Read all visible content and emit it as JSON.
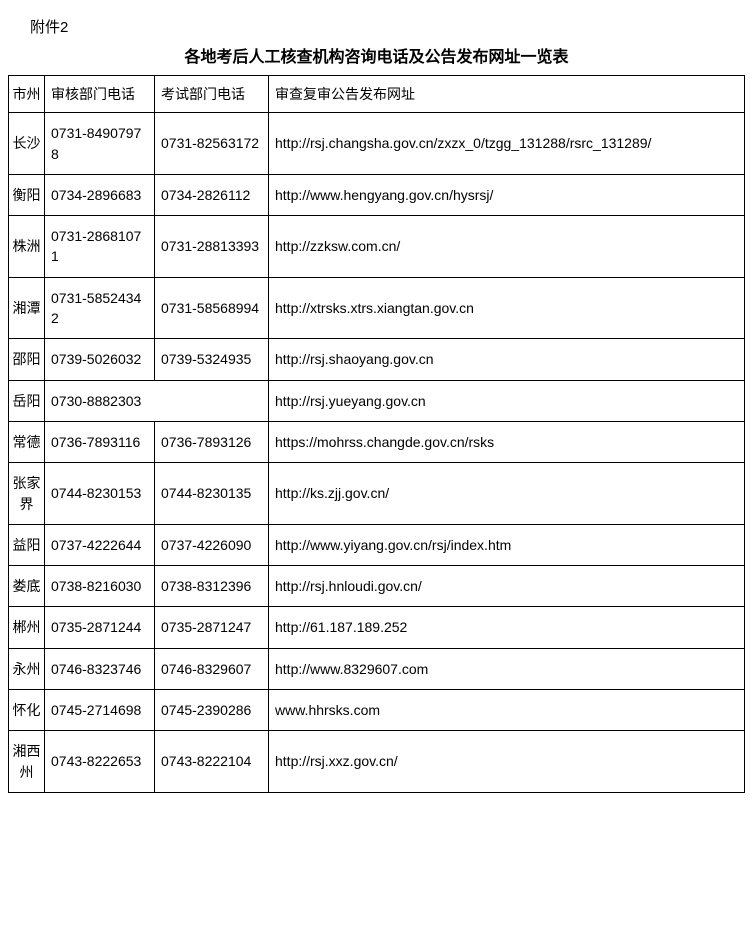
{
  "attachment_label": "附件2",
  "title": "各地考后人工核查机构咨询电话及公告发布网址一览表",
  "columns": {
    "city": "市州",
    "review_phone": "审核部门电话",
    "exam_phone": "考试部门电话",
    "url": "审查复审公告发布网址"
  },
  "rows": [
    {
      "city": "长沙",
      "review_phone": "0731-84907978",
      "exam_phone": "0731-82563172",
      "url": "http://rsj.changsha.gov.cn/zxzx_0/tzgg_131288/rsrc_131289/",
      "merged": false
    },
    {
      "city": "衡阳",
      "review_phone": "0734-2896683",
      "exam_phone": "0734-2826112",
      "url": "http://www.hengyang.gov.cn/hysrsj/",
      "merged": false
    },
    {
      "city": "株洲",
      "review_phone": "0731-28681071",
      "exam_phone": "0731-28813393",
      "url": "http://zzksw.com.cn/",
      "merged": false
    },
    {
      "city": "湘潭",
      "review_phone": "0731-58524342",
      "exam_phone": "0731-58568994",
      "url": "http://xtrsks.xtrs.xiangtan.gov.cn",
      "merged": false
    },
    {
      "city": "邵阳",
      "review_phone": "0739-5026032",
      "exam_phone": "0739-5324935",
      "url": "http://rsj.shaoyang.gov.cn",
      "merged": false
    },
    {
      "city": "岳阳",
      "review_phone": "0730-8882303",
      "exam_phone": "",
      "url": "http://rsj.yueyang.gov.cn",
      "merged": true
    },
    {
      "city": "常德",
      "review_phone": "0736-7893116",
      "exam_phone": "0736-7893126",
      "url": "https://mohrss.changde.gov.cn/rsks",
      "merged": false
    },
    {
      "city": "张家界",
      "review_phone": "0744-8230153",
      "exam_phone": "0744-8230135",
      "url": "http://ks.zjj.gov.cn/",
      "merged": false
    },
    {
      "city": "益阳",
      "review_phone": "0737-4222644",
      "exam_phone": "0737-4226090",
      "url": "http://www.yiyang.gov.cn/rsj/index.htm",
      "merged": false
    },
    {
      "city": "娄底",
      "review_phone": "0738-8216030",
      "exam_phone": "0738-8312396",
      "url": "http://rsj.hnloudi.gov.cn/",
      "merged": false
    },
    {
      "city": "郴州",
      "review_phone": "0735-2871244",
      "exam_phone": "0735-2871247",
      "url": "http://61.187.189.252",
      "merged": false
    },
    {
      "city": "永州",
      "review_phone": "0746-8323746",
      "exam_phone": "0746-8329607",
      "url": "http://www.8329607.com",
      "merged": false
    },
    {
      "city": "怀化",
      "review_phone": "0745-2714698",
      "exam_phone": "0745-2390286",
      "url": "www.hhrsks.com",
      "merged": false
    },
    {
      "city": "湘西州",
      "review_phone": "0743-8222653",
      "exam_phone": "0743-8222104",
      "url": "http://rsj.xxz.gov.cn/",
      "merged": false
    }
  ]
}
